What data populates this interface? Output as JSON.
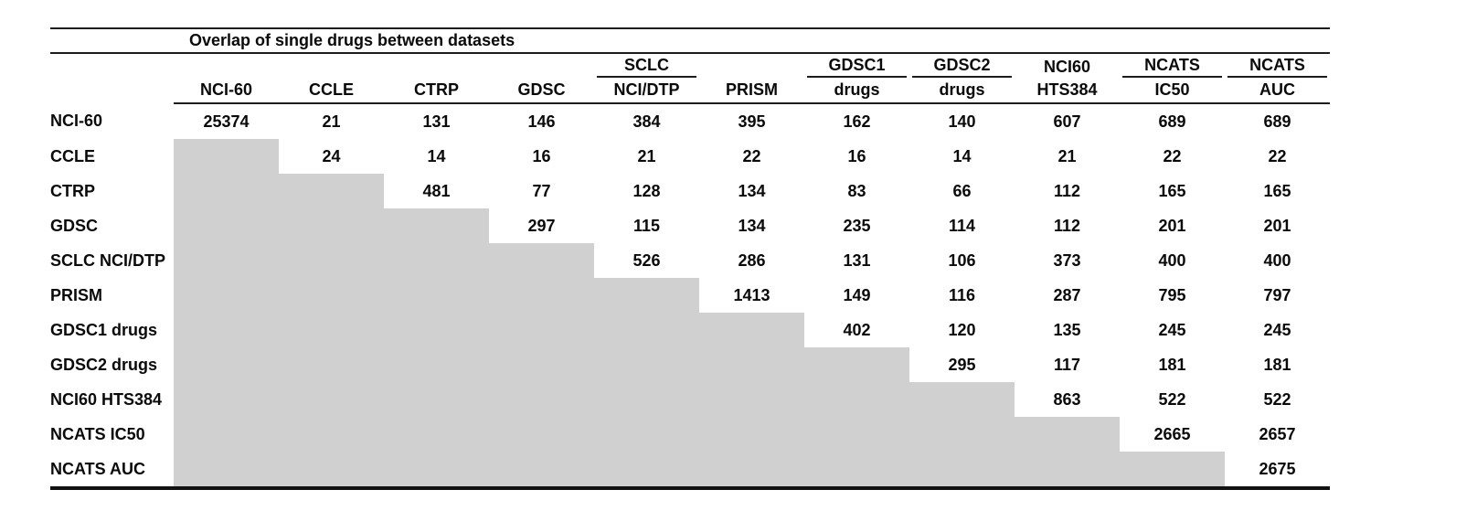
{
  "table": {
    "title": "Overlap of single drugs between datasets",
    "colors": {
      "shaded_cell": "#d0d0d0",
      "rule": "#1c1c1c"
    },
    "columns": [
      {
        "line1": "",
        "line2": "NCI-60",
        "underline": false
      },
      {
        "line1": "",
        "line2": "CCLE",
        "underline": false
      },
      {
        "line1": "",
        "line2": "CTRP",
        "underline": false
      },
      {
        "line1": "",
        "line2": "GDSC",
        "underline": false
      },
      {
        "line1": "SCLC",
        "line2": "NCI/DTP",
        "underline": true
      },
      {
        "line1": "",
        "line2": "PRISM",
        "underline": false
      },
      {
        "line1": "GDSC1",
        "line2": "drugs",
        "underline": true
      },
      {
        "line1": "GDSC2",
        "line2": "drugs",
        "underline": true
      },
      {
        "line1": "NCI60",
        "line2": "HTS384",
        "underline": false
      },
      {
        "line1": "NCATS",
        "line2": "IC50",
        "underline": true
      },
      {
        "line1": "NCATS",
        "line2": "AUC",
        "underline": true
      }
    ],
    "rows": [
      {
        "label": "NCI-60",
        "values": [
          "25374",
          "21",
          "131",
          "146",
          "384",
          "395",
          "162",
          "140",
          "607",
          "689",
          "689"
        ]
      },
      {
        "label": "CCLE",
        "values": [
          null,
          "24",
          "14",
          "16",
          "21",
          "22",
          "16",
          "14",
          "21",
          "22",
          "22"
        ]
      },
      {
        "label": "CTRP",
        "values": [
          null,
          null,
          "481",
          "77",
          "128",
          "134",
          "83",
          "66",
          "112",
          "165",
          "165"
        ]
      },
      {
        "label": "GDSC",
        "values": [
          null,
          null,
          null,
          "297",
          "115",
          "134",
          "235",
          "114",
          "112",
          "201",
          "201"
        ]
      },
      {
        "label": "SCLC NCI/DTP",
        "values": [
          null,
          null,
          null,
          null,
          "526",
          "286",
          "131",
          "106",
          "373",
          "400",
          "400"
        ]
      },
      {
        "label": "PRISM",
        "values": [
          null,
          null,
          null,
          null,
          null,
          "1413",
          "149",
          "116",
          "287",
          "795",
          "797"
        ]
      },
      {
        "label": "GDSC1 drugs",
        "values": [
          null,
          null,
          null,
          null,
          null,
          null,
          "402",
          "120",
          "135",
          "245",
          "245"
        ]
      },
      {
        "label": "GDSC2 drugs",
        "values": [
          null,
          null,
          null,
          null,
          null,
          null,
          null,
          "295",
          "117",
          "181",
          "181"
        ]
      },
      {
        "label": "NCI60 HTS384",
        "values": [
          null,
          null,
          null,
          null,
          null,
          null,
          null,
          null,
          "863",
          "522",
          "522"
        ]
      },
      {
        "label": "NCATS IC50",
        "values": [
          null,
          null,
          null,
          null,
          null,
          null,
          null,
          null,
          null,
          "2665",
          "2657"
        ]
      },
      {
        "label": "NCATS AUC",
        "values": [
          null,
          null,
          null,
          null,
          null,
          null,
          null,
          null,
          null,
          null,
          "2675"
        ]
      }
    ]
  }
}
